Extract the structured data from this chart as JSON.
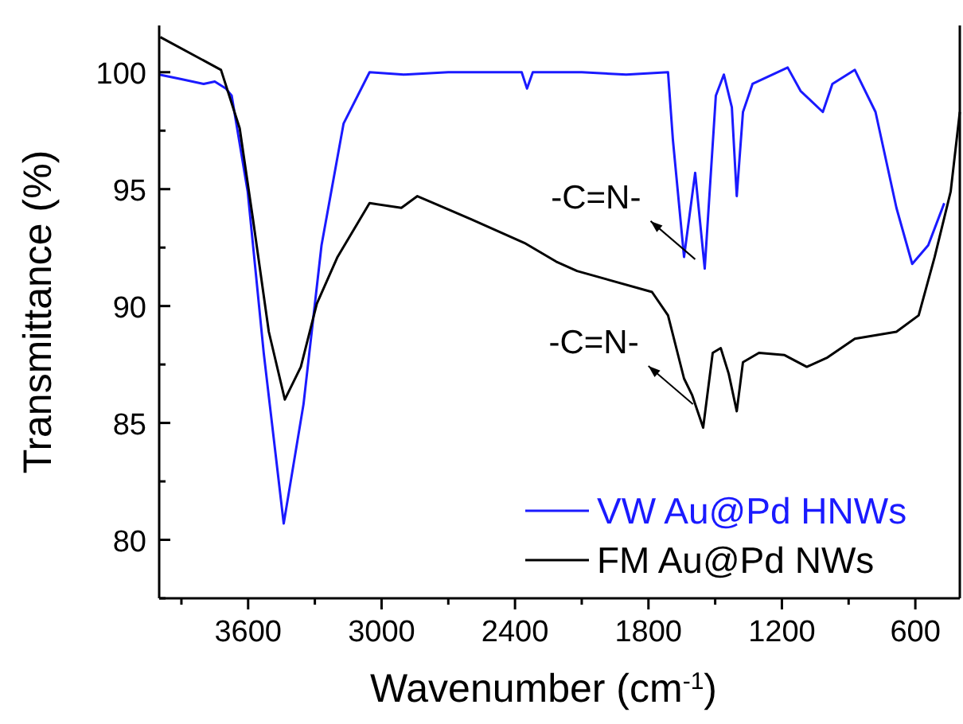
{
  "chart_data": {
    "type": "line",
    "xlabel": "Wavenumber (cm$^{-1}$)",
    "ylabel": "Transmittance (%)",
    "xlim": [
      4000,
      400
    ],
    "ylim": [
      77.5,
      102
    ],
    "xticks": [
      {
        "value": 3900,
        "label": null
      },
      3600,
      {
        "value": 3300,
        "label": null
      },
      3000,
      {
        "value": 2700,
        "label": null
      },
      2400,
      {
        "value": 2100,
        "label": null
      },
      1800,
      {
        "value": 1500,
        "label": null
      },
      1200,
      {
        "value": 900,
        "label": null
      },
      600
    ],
    "yticks": [
      {
        "value": 77.5,
        "label": null
      },
      80,
      {
        "value": 82.5,
        "label": null
      },
      85,
      {
        "value": 87.5,
        "label": null
      },
      90,
      {
        "value": 92.5,
        "label": null
      },
      95,
      {
        "value": 97.5,
        "label": null
      },
      100
    ],
    "legend": "bottom right",
    "grid": false,
    "marker": "none",
    "line_style": "solid",
    "series": [
      {
        "name": "VW Au@Pd HNWs",
        "color": "#1a1aff",
        "x": [
          4000,
          3900,
          3800,
          3750,
          3700,
          3674,
          3602,
          3530,
          3440,
          3351,
          3270,
          3171,
          3054,
          2900,
          2700,
          2500,
          2370,
          2346,
          2320,
          2100,
          1900,
          1712,
          1690,
          1640,
          1590,
          1547,
          1497,
          1461,
          1425,
          1403,
          1375,
          1332,
          1174,
          1116,
          1016,
          973,
          872,
          779,
          685,
          614,
          542,
          470
        ],
        "values": [
          99.9,
          99.7,
          99.5,
          99.6,
          99.3,
          99.0,
          94.9,
          88.0,
          80.7,
          85.8,
          92.6,
          97.8,
          100.0,
          99.9,
          100.0,
          100.0,
          100.0,
          99.3,
          100.0,
          100.0,
          99.9,
          100.0,
          97.1,
          92.1,
          95.7,
          91.6,
          99.0,
          99.9,
          98.5,
          94.7,
          98.3,
          99.5,
          100.2,
          99.2,
          98.3,
          99.5,
          100.1,
          98.3,
          94.2,
          91.8,
          92.6,
          94.4
        ]
      },
      {
        "name": "FM Au@Pd NWs",
        "color": "#000000",
        "x": [
          3995,
          3722,
          3638,
          3578,
          3507,
          3435,
          3363,
          3291,
          3198,
          3054,
          2911,
          2839,
          2595,
          2358,
          2215,
          2121,
          1784,
          1712,
          1640,
          1604,
          1554,
          1511,
          1475,
          1439,
          1403,
          1375,
          1303,
          1188,
          1088,
          995,
          872,
          685,
          585,
          513,
          441,
          400
        ],
        "values": [
          101.5,
          100.1,
          97.6,
          93.7,
          88.9,
          86.0,
          87.4,
          90.1,
          92.1,
          94.4,
          94.2,
          94.7,
          93.7,
          92.7,
          91.9,
          91.5,
          90.6,
          89.6,
          86.9,
          86.2,
          84.8,
          88.0,
          88.2,
          87.1,
          85.5,
          87.6,
          88.0,
          87.9,
          87.4,
          87.8,
          88.6,
          88.9,
          89.6,
          92.1,
          94.9,
          98.3
        ]
      }
    ],
    "annotations": [
      {
        "text": "-C=N-",
        "x": 1590,
        "y": 92.0
      },
      {
        "text": "-C=N-",
        "x": 1600,
        "y": 85.8
      }
    ]
  }
}
